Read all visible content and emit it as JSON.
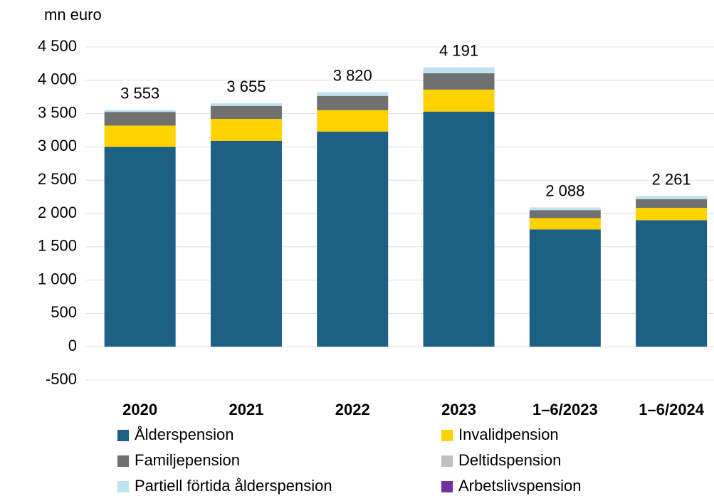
{
  "chart_data": {
    "type": "stacked_bar",
    "y_axis_label": "mn euro",
    "categories": [
      "2020",
      "2021",
      "2022",
      "2023",
      "1–6/2023",
      "1–6/2024"
    ],
    "series": [
      {
        "name": "Ålderspension",
        "color": "#1c6085",
        "values": [
          3000,
          3090,
          3230,
          3530,
          1760,
          1900
        ]
      },
      {
        "name": "Invalidpension",
        "color": "#ffd200",
        "values": [
          320,
          330,
          320,
          330,
          170,
          185
        ]
      },
      {
        "name": "Familjepension",
        "color": "#707070",
        "values": [
          205,
          195,
          215,
          245,
          120,
          130
        ]
      },
      {
        "name": "Deltidspension",
        "color": "#c0c0c0",
        "values": [
          3,
          3,
          3,
          3,
          2,
          1
        ]
      },
      {
        "name": "Partiell förtida ålderspension",
        "color": "#bde3f3",
        "values": [
          25,
          37,
          52,
          82,
          35,
          44
        ]
      },
      {
        "name": "Arbetslivspension",
        "color": "#7030a0",
        "values": [
          0,
          0,
          0,
          1,
          1,
          1
        ]
      }
    ],
    "totals": [
      3553,
      3655,
      3820,
      4191,
      2088,
      2261
    ],
    "total_labels": [
      "3 553",
      "3 655",
      "3 820",
      "4 191",
      "2 088",
      "2 261"
    ],
    "ylim": [
      -500,
      4500
    ],
    "yticks": [
      -500,
      0,
      500,
      {
        "value": 1000,
        "label": "1 000"
      },
      {
        "value": 1500,
        "label": "1 500"
      },
      {
        "value": 2000,
        "label": "2 000"
      },
      {
        "value": 2500,
        "label": "2 500"
      },
      {
        "value": 3000,
        "label": "3 000"
      },
      {
        "value": 3500,
        "label": "3 500"
      },
      {
        "value": 4000,
        "label": "4 000"
      },
      {
        "value": 4500,
        "label": "4 500"
      }
    ],
    "grid": true
  }
}
